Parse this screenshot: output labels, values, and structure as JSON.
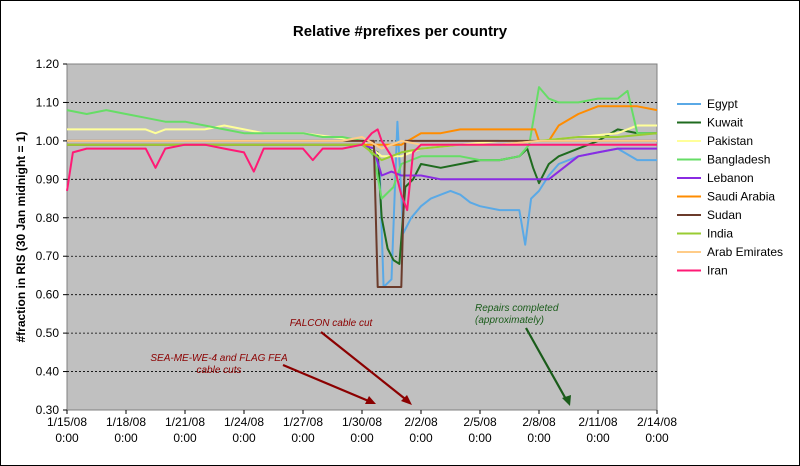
{
  "chart_data": {
    "type": "line",
    "title": "Relative #prefixes per country",
    "ylabel": "#fraction in RIS (30 Jan midnight = 1)",
    "xlabel": "",
    "ylim": [
      0.3,
      1.2
    ],
    "yticks": [
      "1.20",
      "1.10",
      "1.00",
      "0.90",
      "0.80",
      "0.70",
      "0.60",
      "0.50",
      "0.40",
      "0.30"
    ],
    "xticks": [
      [
        "1/15/08",
        "0:00"
      ],
      [
        "1/18/08",
        "0:00"
      ],
      [
        "1/21/08",
        "0:00"
      ],
      [
        "1/24/08",
        "0:00"
      ],
      [
        "1/27/08",
        "0:00"
      ],
      [
        "1/30/08",
        "0:00"
      ],
      [
        "2/2/08",
        "0:00"
      ],
      [
        "2/5/08",
        "0:00"
      ],
      [
        "2/8/08",
        "0:00"
      ],
      [
        "2/11/08",
        "0:00"
      ],
      [
        "2/14/08",
        "0:00"
      ]
    ],
    "x_range_days": [
      0,
      30
    ],
    "grid": "horizontal dashed",
    "legend_position": "right",
    "plot_background": "#c0c0c0",
    "series": [
      {
        "name": "Egypt",
        "color": "#5aa9e6",
        "points": [
          [
            0,
            0.99
          ],
          [
            4,
            0.99
          ],
          [
            8,
            0.99
          ],
          [
            12,
            0.99
          ],
          [
            15,
            0.99
          ],
          [
            15.6,
            0.98
          ],
          [
            15.9,
            0.92
          ],
          [
            16.1,
            0.62
          ],
          [
            16.5,
            0.64
          ],
          [
            16.8,
            1.05
          ],
          [
            17.1,
            0.76
          ],
          [
            17.5,
            0.8
          ],
          [
            18,
            0.83
          ],
          [
            18.5,
            0.85
          ],
          [
            19,
            0.86
          ],
          [
            19.5,
            0.87
          ],
          [
            20,
            0.86
          ],
          [
            20.5,
            0.84
          ],
          [
            21,
            0.83
          ],
          [
            22,
            0.82
          ],
          [
            23,
            0.82
          ],
          [
            23.3,
            0.73
          ],
          [
            23.6,
            0.85
          ],
          [
            24,
            0.87
          ],
          [
            24.5,
            0.91
          ],
          [
            25,
            0.94
          ],
          [
            26,
            0.96
          ],
          [
            27,
            0.97
          ],
          [
            28,
            0.98
          ],
          [
            29,
            0.95
          ],
          [
            30,
            0.95
          ]
        ]
      },
      {
        "name": "Kuwait",
        "color": "#1f6b1f",
        "points": [
          [
            0,
            0.99
          ],
          [
            5,
            0.99
          ],
          [
            10,
            0.99
          ],
          [
            15,
            0.99
          ],
          [
            15.8,
            0.97
          ],
          [
            16,
            0.8
          ],
          [
            16.3,
            0.72
          ],
          [
            16.6,
            0.69
          ],
          [
            16.9,
            0.68
          ],
          [
            17.2,
            0.88
          ],
          [
            17.6,
            0.9
          ],
          [
            18,
            0.94
          ],
          [
            19,
            0.93
          ],
          [
            20,
            0.94
          ],
          [
            21,
            0.95
          ],
          [
            22,
            0.95
          ],
          [
            23,
            0.96
          ],
          [
            23.4,
            0.98
          ],
          [
            23.7,
            0.93
          ],
          [
            24,
            0.89
          ],
          [
            24.5,
            0.94
          ],
          [
            25,
            0.96
          ],
          [
            26,
            0.98
          ],
          [
            27,
            1.0
          ],
          [
            28,
            1.03
          ],
          [
            29,
            1.02
          ],
          [
            30,
            1.02
          ]
        ]
      },
      {
        "name": "Pakistan",
        "color": "#ffff99",
        "points": [
          [
            0,
            1.03
          ],
          [
            2,
            1.03
          ],
          [
            4,
            1.03
          ],
          [
            4.5,
            1.02
          ],
          [
            5,
            1.03
          ],
          [
            7,
            1.03
          ],
          [
            8,
            1.04
          ],
          [
            10,
            1.02
          ],
          [
            12,
            1.02
          ],
          [
            15,
            1.0
          ],
          [
            16,
            0.96
          ],
          [
            17,
            0.96
          ],
          [
            18,
            0.98
          ],
          [
            20,
            0.99
          ],
          [
            22,
            1.0
          ],
          [
            24,
            1.0
          ],
          [
            26,
            1.01
          ],
          [
            28,
            1.02
          ],
          [
            29,
            1.04
          ],
          [
            30,
            1.04
          ]
        ]
      },
      {
        "name": "Bangladesh",
        "color": "#66dd66",
        "points": [
          [
            0,
            1.08
          ],
          [
            1,
            1.07
          ],
          [
            2,
            1.08
          ],
          [
            3,
            1.07
          ],
          [
            4,
            1.06
          ],
          [
            5,
            1.05
          ],
          [
            6,
            1.05
          ],
          [
            7,
            1.04
          ],
          [
            8,
            1.03
          ],
          [
            9,
            1.02
          ],
          [
            10,
            1.02
          ],
          [
            11,
            1.02
          ],
          [
            12,
            1.02
          ],
          [
            13,
            1.01
          ],
          [
            14,
            1.01
          ],
          [
            15,
            1.0
          ],
          [
            15.6,
            0.96
          ],
          [
            16,
            0.85
          ],
          [
            16.6,
            0.88
          ],
          [
            17,
            0.94
          ],
          [
            18,
            0.96
          ],
          [
            19,
            0.96
          ],
          [
            20,
            0.96
          ],
          [
            21,
            0.95
          ],
          [
            22,
            0.95
          ],
          [
            23,
            0.96
          ],
          [
            23.5,
            0.99
          ],
          [
            24,
            1.14
          ],
          [
            24.5,
            1.11
          ],
          [
            25,
            1.1
          ],
          [
            26,
            1.1
          ],
          [
            27,
            1.11
          ],
          [
            28,
            1.11
          ],
          [
            28.5,
            1.13
          ],
          [
            29,
            1.02
          ],
          [
            30,
            1.02
          ]
        ]
      },
      {
        "name": "Lebanon",
        "color": "#8a2be2",
        "points": [
          [
            0,
            0.99
          ],
          [
            5,
            0.99
          ],
          [
            10,
            0.99
          ],
          [
            15,
            0.99
          ],
          [
            15.6,
            0.98
          ],
          [
            16,
            0.91
          ],
          [
            16.5,
            0.92
          ],
          [
            17,
            0.91
          ],
          [
            18,
            0.91
          ],
          [
            19,
            0.9
          ],
          [
            20,
            0.9
          ],
          [
            21,
            0.9
          ],
          [
            22,
            0.9
          ],
          [
            23,
            0.9
          ],
          [
            24,
            0.9
          ],
          [
            24.5,
            0.9
          ],
          [
            25,
            0.92
          ],
          [
            26,
            0.96
          ],
          [
            27,
            0.97
          ],
          [
            28,
            0.98
          ],
          [
            29,
            0.98
          ],
          [
            30,
            0.98
          ]
        ]
      },
      {
        "name": "Saudi Arabia",
        "color": "#ff8c00",
        "points": [
          [
            0,
            0.99
          ],
          [
            5,
            0.99
          ],
          [
            10,
            0.99
          ],
          [
            15,
            0.99
          ],
          [
            16,
            0.99
          ],
          [
            17,
            0.99
          ],
          [
            18,
            1.02
          ],
          [
            19,
            1.02
          ],
          [
            20,
            1.03
          ],
          [
            21,
            1.03
          ],
          [
            22,
            1.03
          ],
          [
            23,
            1.03
          ],
          [
            23.8,
            1.03
          ],
          [
            24,
            1.0
          ],
          [
            24.5,
            1.0
          ],
          [
            25,
            1.04
          ],
          [
            26,
            1.07
          ],
          [
            27,
            1.09
          ],
          [
            28,
            1.09
          ],
          [
            29,
            1.09
          ],
          [
            30,
            1.08
          ]
        ]
      },
      {
        "name": "Sudan",
        "color": "#6b3b2b",
        "points": [
          [
            0,
            1.0
          ],
          [
            5,
            1.0
          ],
          [
            10,
            1.0
          ],
          [
            15,
            1.0
          ],
          [
            15.6,
            1.0
          ],
          [
            15.8,
            0.62
          ],
          [
            16,
            0.62
          ],
          [
            17,
            0.62
          ],
          [
            17.2,
            1.0
          ],
          [
            18,
            1.0
          ],
          [
            20,
            1.0
          ],
          [
            25,
            1.0
          ],
          [
            30,
            1.0
          ]
        ]
      },
      {
        "name": "India",
        "color": "#99cc33",
        "points": [
          [
            0,
            0.99
          ],
          [
            5,
            0.99
          ],
          [
            10,
            0.99
          ],
          [
            15,
            0.99
          ],
          [
            16,
            0.95
          ],
          [
            17,
            0.97
          ],
          [
            18,
            0.98
          ],
          [
            20,
            0.99
          ],
          [
            22,
            0.99
          ],
          [
            24,
            1.0
          ],
          [
            26,
            1.01
          ],
          [
            28,
            1.01
          ],
          [
            30,
            1.02
          ]
        ]
      },
      {
        "name": "Arab Emirates",
        "color": "#ffcc88",
        "points": [
          [
            0,
            1.0
          ],
          [
            5,
            1.0
          ],
          [
            10,
            1.0
          ],
          [
            14,
            1.0
          ],
          [
            15,
            1.01
          ],
          [
            16,
            0.98
          ],
          [
            17,
            1.0
          ],
          [
            18,
            0.99
          ],
          [
            20,
            0.99
          ],
          [
            22,
            0.99
          ],
          [
            24,
            1.0
          ],
          [
            26,
            1.0
          ],
          [
            28,
            1.0
          ],
          [
            30,
            1.0
          ]
        ]
      },
      {
        "name": "Iran",
        "color": "#ff1a75",
        "points": [
          [
            0,
            0.87
          ],
          [
            0.3,
            0.97
          ],
          [
            1,
            0.98
          ],
          [
            2,
            0.98
          ],
          [
            3,
            0.98
          ],
          [
            4,
            0.98
          ],
          [
            4.5,
            0.93
          ],
          [
            5,
            0.98
          ],
          [
            6,
            0.99
          ],
          [
            7,
            0.99
          ],
          [
            8,
            0.98
          ],
          [
            9,
            0.97
          ],
          [
            9.5,
            0.92
          ],
          [
            10,
            0.98
          ],
          [
            11,
            0.98
          ],
          [
            12,
            0.98
          ],
          [
            12.5,
            0.95
          ],
          [
            13,
            0.98
          ],
          [
            14,
            0.98
          ],
          [
            15,
            0.99
          ],
          [
            15.5,
            1.02
          ],
          [
            15.8,
            1.03
          ],
          [
            16,
            1.0
          ],
          [
            16.5,
            0.96
          ],
          [
            17,
            0.86
          ],
          [
            17.3,
            0.82
          ],
          [
            17.6,
            0.97
          ],
          [
            18,
            0.99
          ],
          [
            19,
            0.99
          ],
          [
            20,
            0.99
          ],
          [
            21,
            0.99
          ],
          [
            22,
            0.99
          ],
          [
            23,
            0.99
          ],
          [
            24,
            0.99
          ],
          [
            25,
            0.99
          ],
          [
            26,
            0.99
          ],
          [
            27,
            0.99
          ],
          [
            28,
            0.99
          ],
          [
            29,
            0.99
          ],
          [
            30,
            0.99
          ]
        ]
      }
    ],
    "annotations": [
      {
        "lines": [
          "FALCON cable cut"
        ],
        "color": "#8b0000"
      },
      {
        "lines": [
          "SEA-ME-WE-4 and FLAG FEA",
          "cable cuts"
        ],
        "color": "#8b0000"
      },
      {
        "lines": [
          "Repairs completed",
          "(approximately)"
        ],
        "color": "#1a5c1a"
      }
    ]
  }
}
